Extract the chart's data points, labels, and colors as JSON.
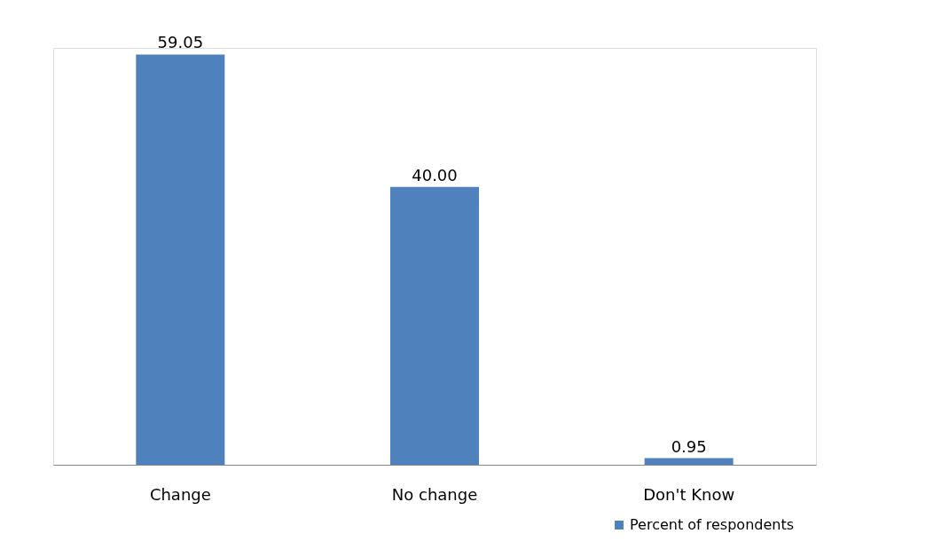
{
  "chart_data": {
    "type": "bar",
    "categories": [
      "Change",
      "No change",
      "Don't Know"
    ],
    "series": [
      {
        "name": "Percent of respondents",
        "color": "#4f81bd",
        "values": [
          59.05,
          40.0,
          0.95
        ],
        "value_labels": [
          "59.05",
          "40.00",
          "0.95"
        ]
      }
    ],
    "legend": "bottom right",
    "grid": false,
    "tick_labels": "x"
  }
}
